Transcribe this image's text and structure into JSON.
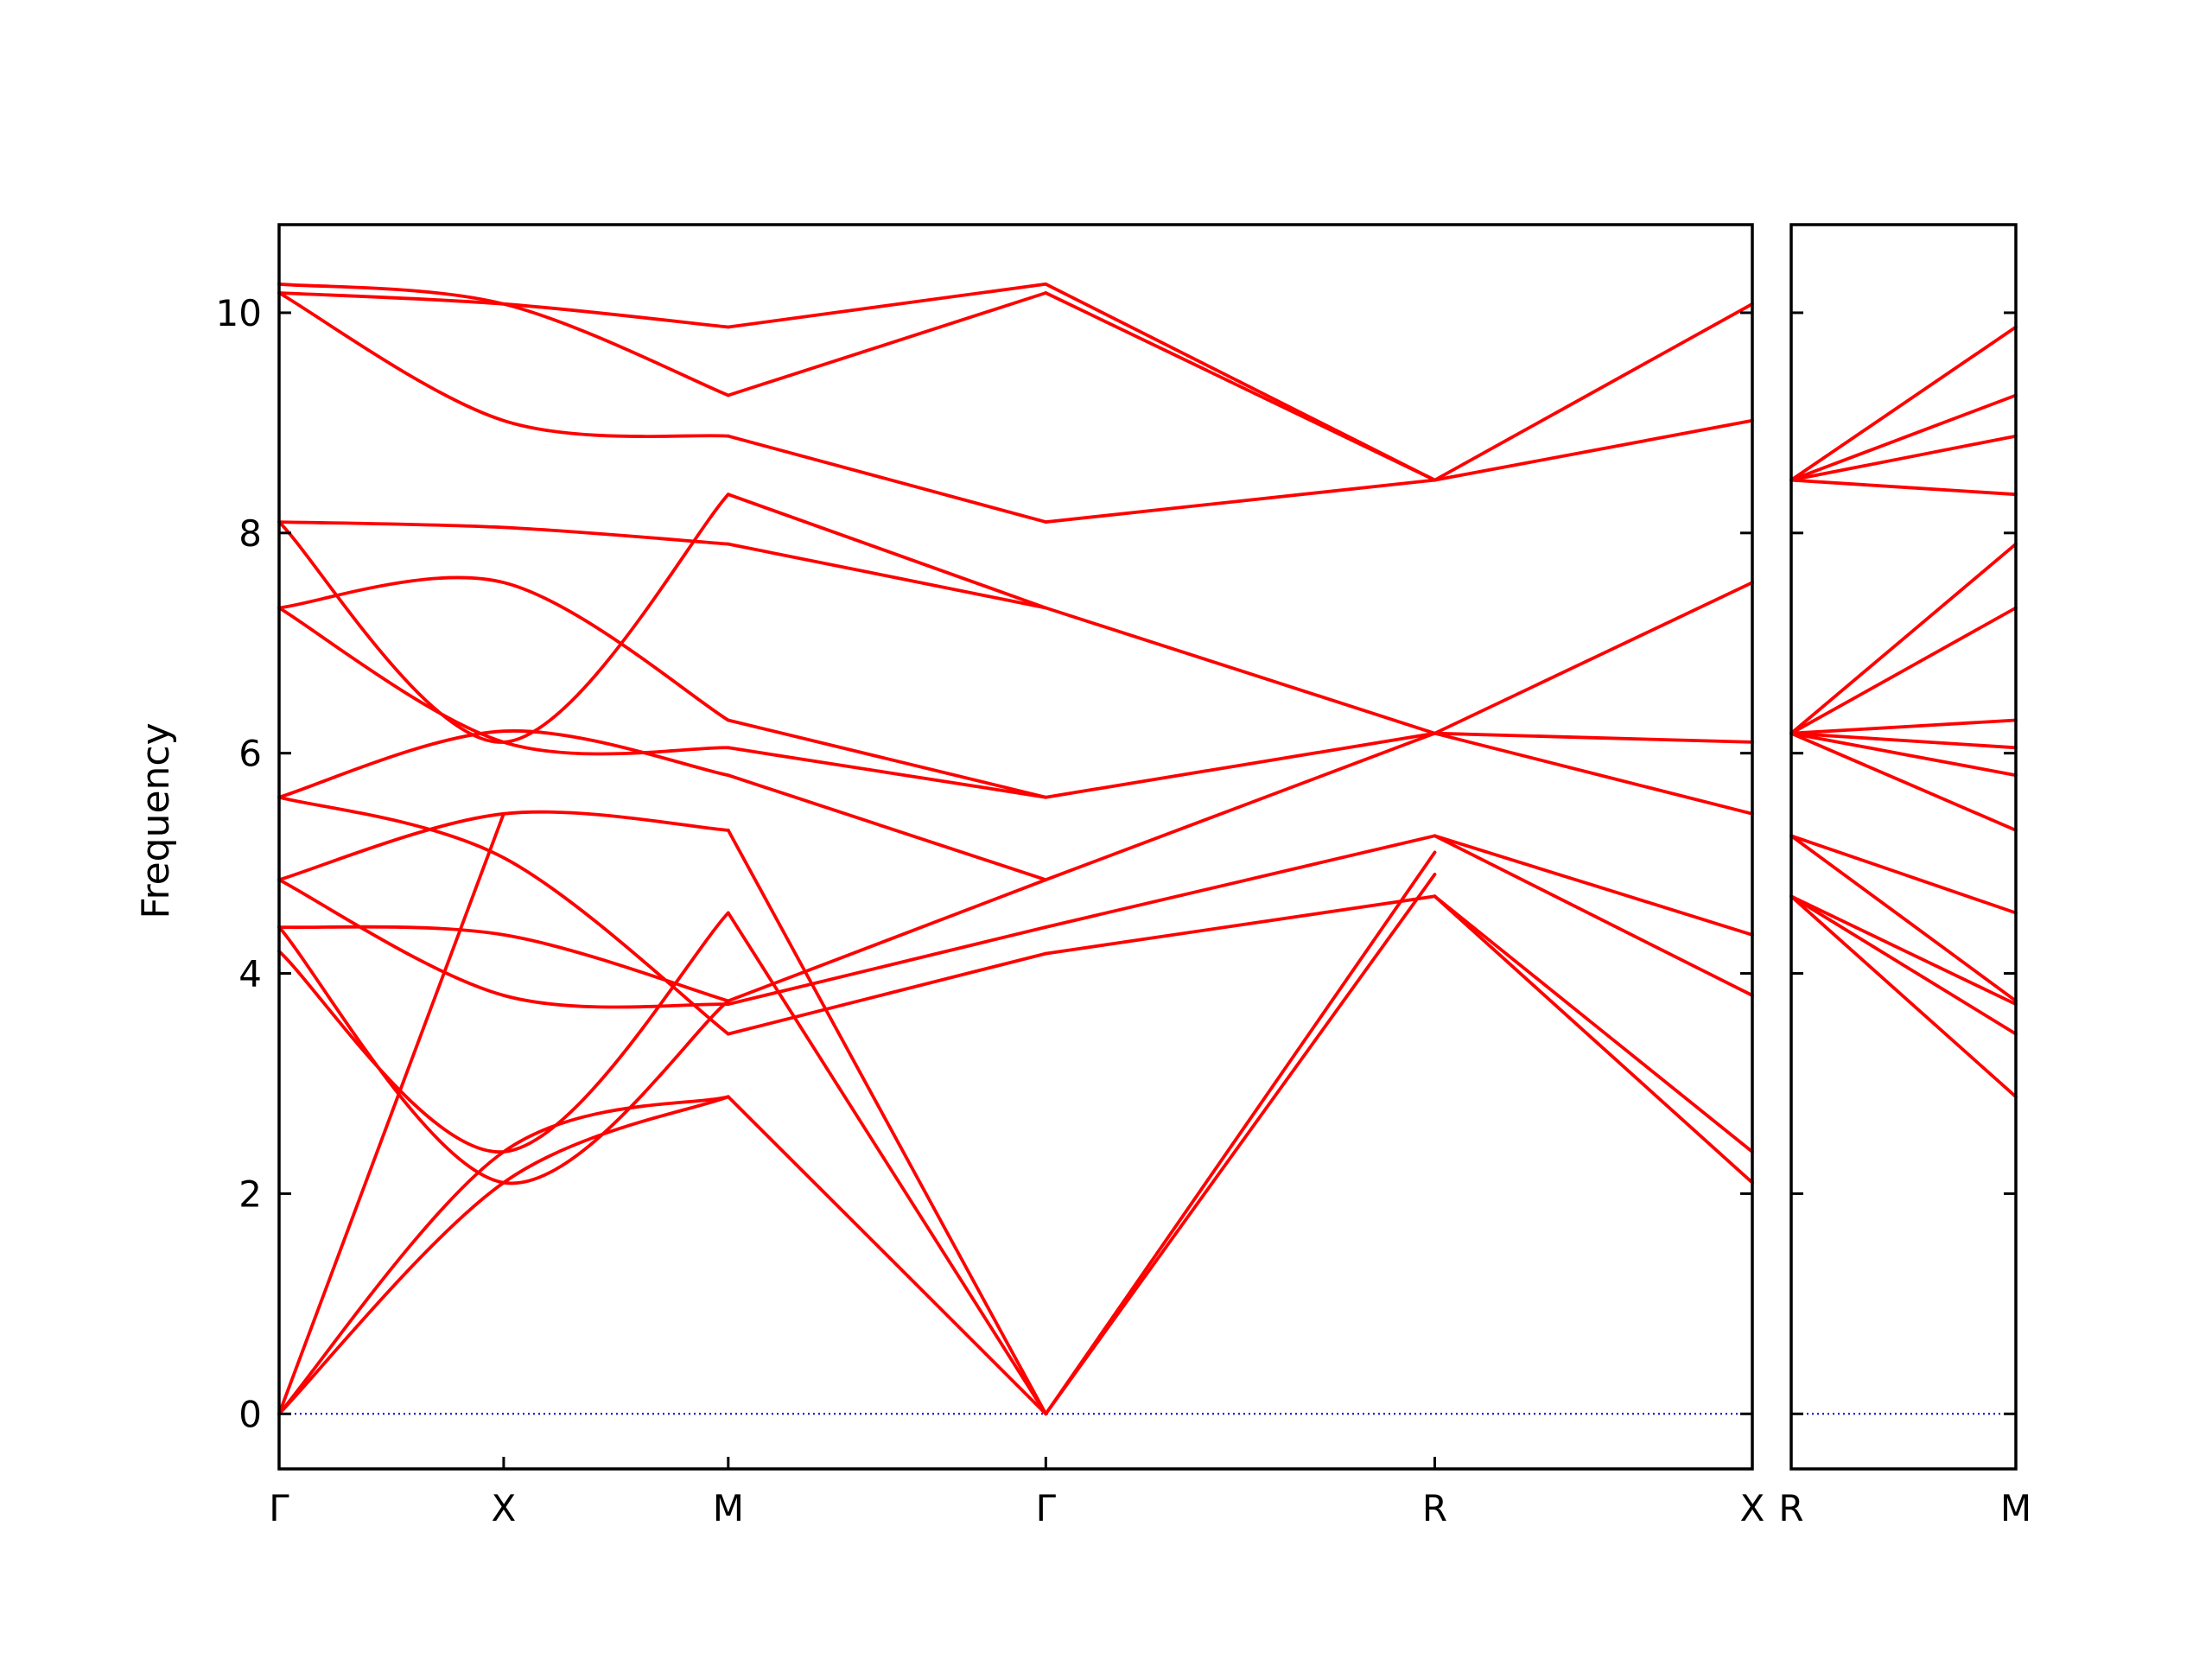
{
  "chart_data": {
    "type": "line",
    "title": "",
    "ylabel": "Frequency",
    "xlabel": "",
    "ylim": [
      -0.5,
      10.8
    ],
    "yticks": [
      0,
      2,
      4,
      6,
      8,
      10
    ],
    "grid": false,
    "legend": "none",
    "colors": {
      "band": "#ff0000",
      "zero_line": "#0000cc",
      "frame": "#000000"
    },
    "panels": [
      {
        "id": "left",
        "high_symmetry_points": [
          {
            "label": "Γ",
            "x": 0.0
          },
          {
            "label": "X",
            "x": 0.5
          },
          {
            "label": "M",
            "x": 1.0
          },
          {
            "label": "Γ",
            "x": 1.707
          },
          {
            "label": "R",
            "x": 2.573
          },
          {
            "label": "X",
            "x": 3.28
          }
        ],
        "xlim": [
          0.0,
          3.28
        ],
        "bands": [
          {
            "x": [
              0.0,
              0.5,
              1.0
            ],
            "y": [
              0.0,
              2.1,
              2.88
            ]
          },
          {
            "x": [
              0.0,
              0.5,
              1.0
            ],
            "y": [
              0.0,
              2.38,
              2.88
            ]
          },
          {
            "x": [
              0.0,
              0.5
            ],
            "y": [
              0.0,
              5.45
            ]
          },
          {
            "x": [
              1.0,
              1.707
            ],
            "y": [
              2.88,
              0.0
            ]
          },
          {
            "x": [
              1.0,
              1.707
            ],
            "y": [
              4.55,
              0.0
            ]
          },
          {
            "x": [
              1.0,
              1.707
            ],
            "y": [
              5.3,
              0.0
            ]
          },
          {
            "x": [
              1.707,
              2.573
            ],
            "y": [
              0.0,
              4.9
            ]
          },
          {
            "x": [
              1.707,
              2.573
            ],
            "y": [
              0.0,
              5.1
            ]
          },
          {
            "x": [
              0.0,
              0.5,
              1.0
            ],
            "y": [
              4.2,
              2.38,
              4.55
            ]
          },
          {
            "x": [
              0.0,
              0.5,
              1.0
            ],
            "y": [
              4.42,
              2.1,
              3.75
            ]
          },
          {
            "x": [
              0.0,
              0.5,
              1.0
            ],
            "y": [
              4.42,
              4.35,
              3.75
            ]
          },
          {
            "x": [
              0.0,
              0.5,
              1.0
            ],
            "y": [
              4.85,
              3.8,
              3.72
            ]
          },
          {
            "x": [
              0.0,
              0.5,
              1.0
            ],
            "y": [
              4.85,
              5.45,
              5.3
            ]
          },
          {
            "x": [
              0.0,
              0.5,
              1.0
            ],
            "y": [
              5.6,
              5.05,
              3.45
            ]
          },
          {
            "x": [
              0.0,
              0.5,
              1.0
            ],
            "y": [
              5.6,
              6.2,
              5.8
            ]
          },
          {
            "x": [
              0.0,
              0.5,
              1.0
            ],
            "y": [
              7.32,
              6.1,
              6.05
            ]
          },
          {
            "x": [
              0.0,
              0.5,
              1.0
            ],
            "y": [
              7.32,
              7.55,
              6.3
            ]
          },
          {
            "x": [
              0.0,
              0.5,
              1.0
            ],
            "y": [
              8.1,
              6.1,
              8.35
            ]
          },
          {
            "x": [
              0.0,
              0.5,
              1.0
            ],
            "y": [
              8.1,
              8.05,
              7.9
            ]
          },
          {
            "x": [
              0.0,
              0.5,
              1.0
            ],
            "y": [
              10.18,
              9.02,
              8.88
            ]
          },
          {
            "x": [
              0.0,
              0.5,
              1.0
            ],
            "y": [
              10.18,
              10.08,
              9.87
            ]
          },
          {
            "x": [
              0.0,
              0.5,
              1.0
            ],
            "y": [
              10.26,
              10.08,
              9.25
            ]
          },
          {
            "x": [
              1.0,
              1.707
            ],
            "y": [
              3.45,
              4.18
            ]
          },
          {
            "x": [
              1.0,
              1.707
            ],
            "y": [
              3.72,
              4.42
            ]
          },
          {
            "x": [
              1.0,
              1.707
            ],
            "y": [
              3.75,
              4.85
            ]
          },
          {
            "x": [
              1.0,
              1.707
            ],
            "y": [
              5.8,
              4.85
            ]
          },
          {
            "x": [
              1.0,
              1.707
            ],
            "y": [
              6.05,
              5.6
            ]
          },
          {
            "x": [
              1.0,
              1.707
            ],
            "y": [
              6.3,
              5.6
            ]
          },
          {
            "x": [
              1.0,
              1.707
            ],
            "y": [
              7.9,
              7.32
            ]
          },
          {
            "x": [
              1.0,
              1.707
            ],
            "y": [
              8.35,
              7.32
            ]
          },
          {
            "x": [
              1.0,
              1.707
            ],
            "y": [
              8.88,
              8.1
            ]
          },
          {
            "x": [
              1.0,
              1.707
            ],
            "y": [
              9.25,
              10.18
            ]
          },
          {
            "x": [
              1.0,
              1.707
            ],
            "y": [
              9.87,
              10.26
            ]
          },
          {
            "x": [
              1.707,
              2.573
            ],
            "y": [
              4.18,
              4.7
            ]
          },
          {
            "x": [
              1.707,
              2.573
            ],
            "y": [
              4.42,
              5.25
            ]
          },
          {
            "x": [
              1.707,
              2.573
            ],
            "y": [
              4.85,
              6.18
            ]
          },
          {
            "x": [
              1.707,
              2.573
            ],
            "y": [
              5.6,
              6.18
            ]
          },
          {
            "x": [
              1.707,
              2.573
            ],
            "y": [
              7.32,
              6.18
            ]
          },
          {
            "x": [
              1.707,
              2.573
            ],
            "y": [
              8.1,
              8.48
            ]
          },
          {
            "x": [
              1.707,
              2.573
            ],
            "y": [
              10.18,
              8.48
            ]
          },
          {
            "x": [
              1.707,
              2.573
            ],
            "y": [
              10.26,
              8.48
            ]
          },
          {
            "x": [
              2.573,
              3.28
            ],
            "y": [
              4.7,
              2.1
            ]
          },
          {
            "x": [
              2.573,
              3.28
            ],
            "y": [
              4.7,
              2.38
            ]
          },
          {
            "x": [
              2.573,
              3.28
            ],
            "y": [
              5.25,
              3.8
            ]
          },
          {
            "x": [
              2.573,
              3.28
            ],
            "y": [
              5.25,
              4.35
            ]
          },
          {
            "x": [
              2.573,
              3.28
            ],
            "y": [
              6.18,
              5.45
            ]
          },
          {
            "x": [
              2.573,
              3.28
            ],
            "y": [
              6.18,
              6.1
            ]
          },
          {
            "x": [
              2.573,
              3.28
            ],
            "y": [
              6.18,
              7.55
            ]
          },
          {
            "x": [
              2.573,
              3.28
            ],
            "y": [
              8.48,
              9.02
            ]
          },
          {
            "x": [
              2.573,
              3.28
            ],
            "y": [
              8.48,
              10.08
            ]
          }
        ]
      },
      {
        "id": "right",
        "high_symmetry_points": [
          {
            "label": "R",
            "x": 0.0
          },
          {
            "label": "M",
            "x": 0.707
          }
        ],
        "xlim": [
          0.0,
          0.707
        ],
        "bands": [
          {
            "x": [
              0.0,
              0.707
            ],
            "y": [
              4.7,
              2.88
            ]
          },
          {
            "x": [
              0.0,
              0.707
            ],
            "y": [
              4.7,
              3.45
            ]
          },
          {
            "x": [
              0.0,
              0.707
            ],
            "y": [
              4.7,
              3.72
            ]
          },
          {
            "x": [
              0.0,
              0.707
            ],
            "y": [
              5.25,
              3.75
            ]
          },
          {
            "x": [
              0.0,
              0.707
            ],
            "y": [
              5.25,
              4.55
            ]
          },
          {
            "x": [
              0.0,
              0.707
            ],
            "y": [
              6.18,
              5.3
            ]
          },
          {
            "x": [
              0.0,
              0.707
            ],
            "y": [
              6.18,
              5.8
            ]
          },
          {
            "x": [
              0.0,
              0.707
            ],
            "y": [
              6.18,
              6.05
            ]
          },
          {
            "x": [
              0.0,
              0.707
            ],
            "y": [
              6.18,
              6.3
            ]
          },
          {
            "x": [
              0.0,
              0.707
            ],
            "y": [
              6.18,
              7.32
            ]
          },
          {
            "x": [
              0.0,
              0.707
            ],
            "y": [
              6.18,
              7.9
            ]
          },
          {
            "x": [
              0.0,
              0.707
            ],
            "y": [
              8.48,
              8.35
            ]
          },
          {
            "x": [
              0.0,
              0.707
            ],
            "y": [
              8.48,
              8.88
            ]
          },
          {
            "x": [
              0.0,
              0.707
            ],
            "y": [
              8.48,
              9.25
            ]
          },
          {
            "x": [
              0.0,
              0.707
            ],
            "y": [
              8.48,
              9.87
            ]
          }
        ]
      }
    ]
  }
}
